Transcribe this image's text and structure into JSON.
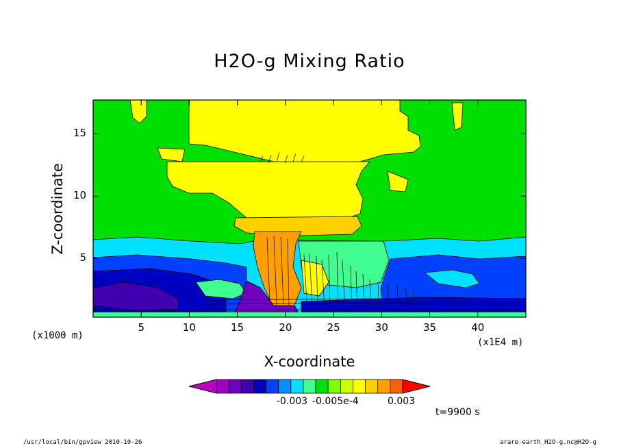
{
  "chart_data": {
    "type": "heatmap",
    "title": "H2O-g Mixing Ratio",
    "xlabel": "X-coordinate",
    "ylabel": "Z-coordinate",
    "x_scale_note_left": "(x1000 m)",
    "x_scale_note_right": "(x1E4 m)",
    "xlim": [
      0,
      45
    ],
    "ylim": [
      0.3,
      17.7
    ],
    "x_ticks": [
      "5",
      "10",
      "15",
      "20",
      "25",
      "30",
      "35",
      "40"
    ],
    "x_tick_values": [
      5,
      10,
      15,
      20,
      25,
      30,
      35,
      40
    ],
    "y_ticks": [
      "5",
      "10",
      "15"
    ],
    "y_tick_values": [
      5,
      10,
      15
    ],
    "colorbar": {
      "labels": [
        "-0.003",
        "-0.005e-4",
        "0.003"
      ],
      "colors": [
        "#c000c0",
        "#a000c0",
        "#7000c0",
        "#4000b0",
        "#0000c0",
        "#0040ff",
        "#0090ff",
        "#00e0ff",
        "#40ff90",
        "#00e000",
        "#80ff00",
        "#d0ff00",
        "#ffff00",
        "#ffd000",
        "#ffa000",
        "#ff6000",
        "#ff0000"
      ]
    },
    "time_label": "t=9900 s"
  },
  "footer": {
    "left": "/usr/local/bin/gpview  2010-10-26",
    "right": "arare-earth_H2O-g.nc@H2O-g"
  }
}
